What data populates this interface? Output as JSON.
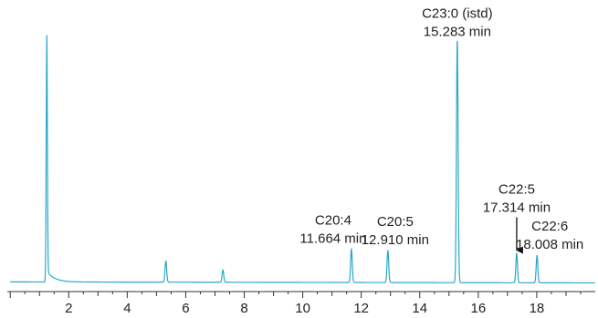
{
  "chart_data": {
    "type": "line",
    "title": "",
    "xlabel": "",
    "ylabel": "",
    "xlim": [
      -0.1,
      20.0
    ],
    "ylim": [
      0,
      1.0
    ],
    "x_ticks": [
      2,
      4,
      6,
      8,
      10,
      12,
      14,
      16,
      18
    ],
    "x_tick_labels": [
      "2",
      "4",
      "6",
      "8",
      "10",
      "12",
      "14",
      "16",
      "18"
    ],
    "grid": false,
    "line_color": "#2aa9c9",
    "peaks": [
      {
        "rt": 1.25,
        "height": 0.96
      },
      {
        "rt": 5.32,
        "height": 0.085
      },
      {
        "rt": 7.27,
        "height": 0.05
      },
      {
        "rt": 11.664,
        "height": 0.135
      },
      {
        "rt": 12.91,
        "height": 0.13
      },
      {
        "rt": 15.283,
        "height": 0.98
      },
      {
        "rt": 17.314,
        "height": 0.12
      },
      {
        "rt": 18.008,
        "height": 0.11
      }
    ],
    "annotations": [
      {
        "name": "C23:0 (istd)",
        "time": "15.283 min",
        "rt": 15.283,
        "arrow": false
      },
      {
        "name": "C20:4",
        "time": "11.664 min",
        "rt": 11.664,
        "arrow": false
      },
      {
        "name": "C20:5",
        "time": "12.910 min",
        "rt": 12.91,
        "arrow": false
      },
      {
        "name": "C22:5",
        "time": "17.314 min",
        "rt": 17.314,
        "arrow": true
      },
      {
        "name": "C22:6",
        "time": "18.008 min",
        "rt": 18.008,
        "arrow": false
      }
    ]
  }
}
